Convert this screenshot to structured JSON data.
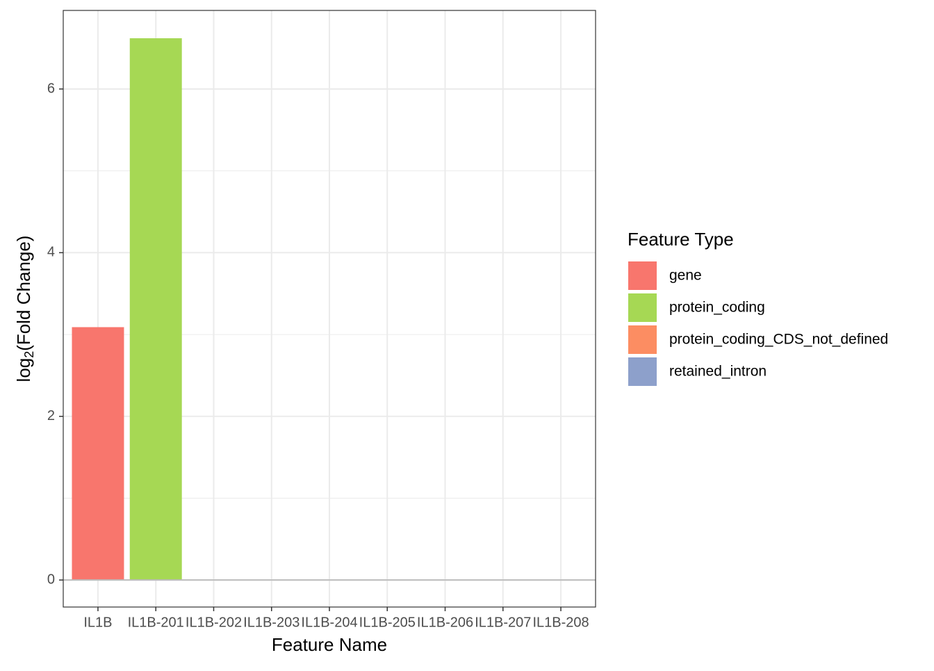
{
  "chart_data": {
    "type": "bar",
    "x_label": "Feature Name",
    "y_label": {
      "base": "log",
      "subscript": "2",
      "rest": "(Fold Change)"
    },
    "categories": [
      "IL1B",
      "IL1B-201",
      "IL1B-202",
      "IL1B-203",
      "IL1B-204",
      "IL1B-205",
      "IL1B-206",
      "IL1B-207",
      "IL1B-208"
    ],
    "values": [
      3.09,
      6.62,
      0,
      0,
      0,
      0,
      0,
      0,
      0
    ],
    "colors": [
      "#f8766d",
      "#a6d854",
      "#fc8d62",
      "#8da0cb",
      "#8da0cb",
      "#8da0cb",
      "#8da0cb",
      "#8da0cb",
      "#8da0cb"
    ],
    "ylim": [
      -0.33,
      6.96
    ],
    "yticks": [
      0,
      2,
      4,
      6
    ],
    "minor_yticks": [
      1,
      3,
      5
    ],
    "grid": true,
    "legend": {
      "title": "Feature Type",
      "position": "right",
      "items": [
        {
          "name": "gene",
          "color": "#f8766d"
        },
        {
          "name": "protein_coding",
          "color": "#a6d854"
        },
        {
          "name": "protein_coding_CDS_not_defined",
          "color": "#fc8d62"
        },
        {
          "name": "retained_intron",
          "color": "#8da0cb"
        }
      ]
    }
  }
}
